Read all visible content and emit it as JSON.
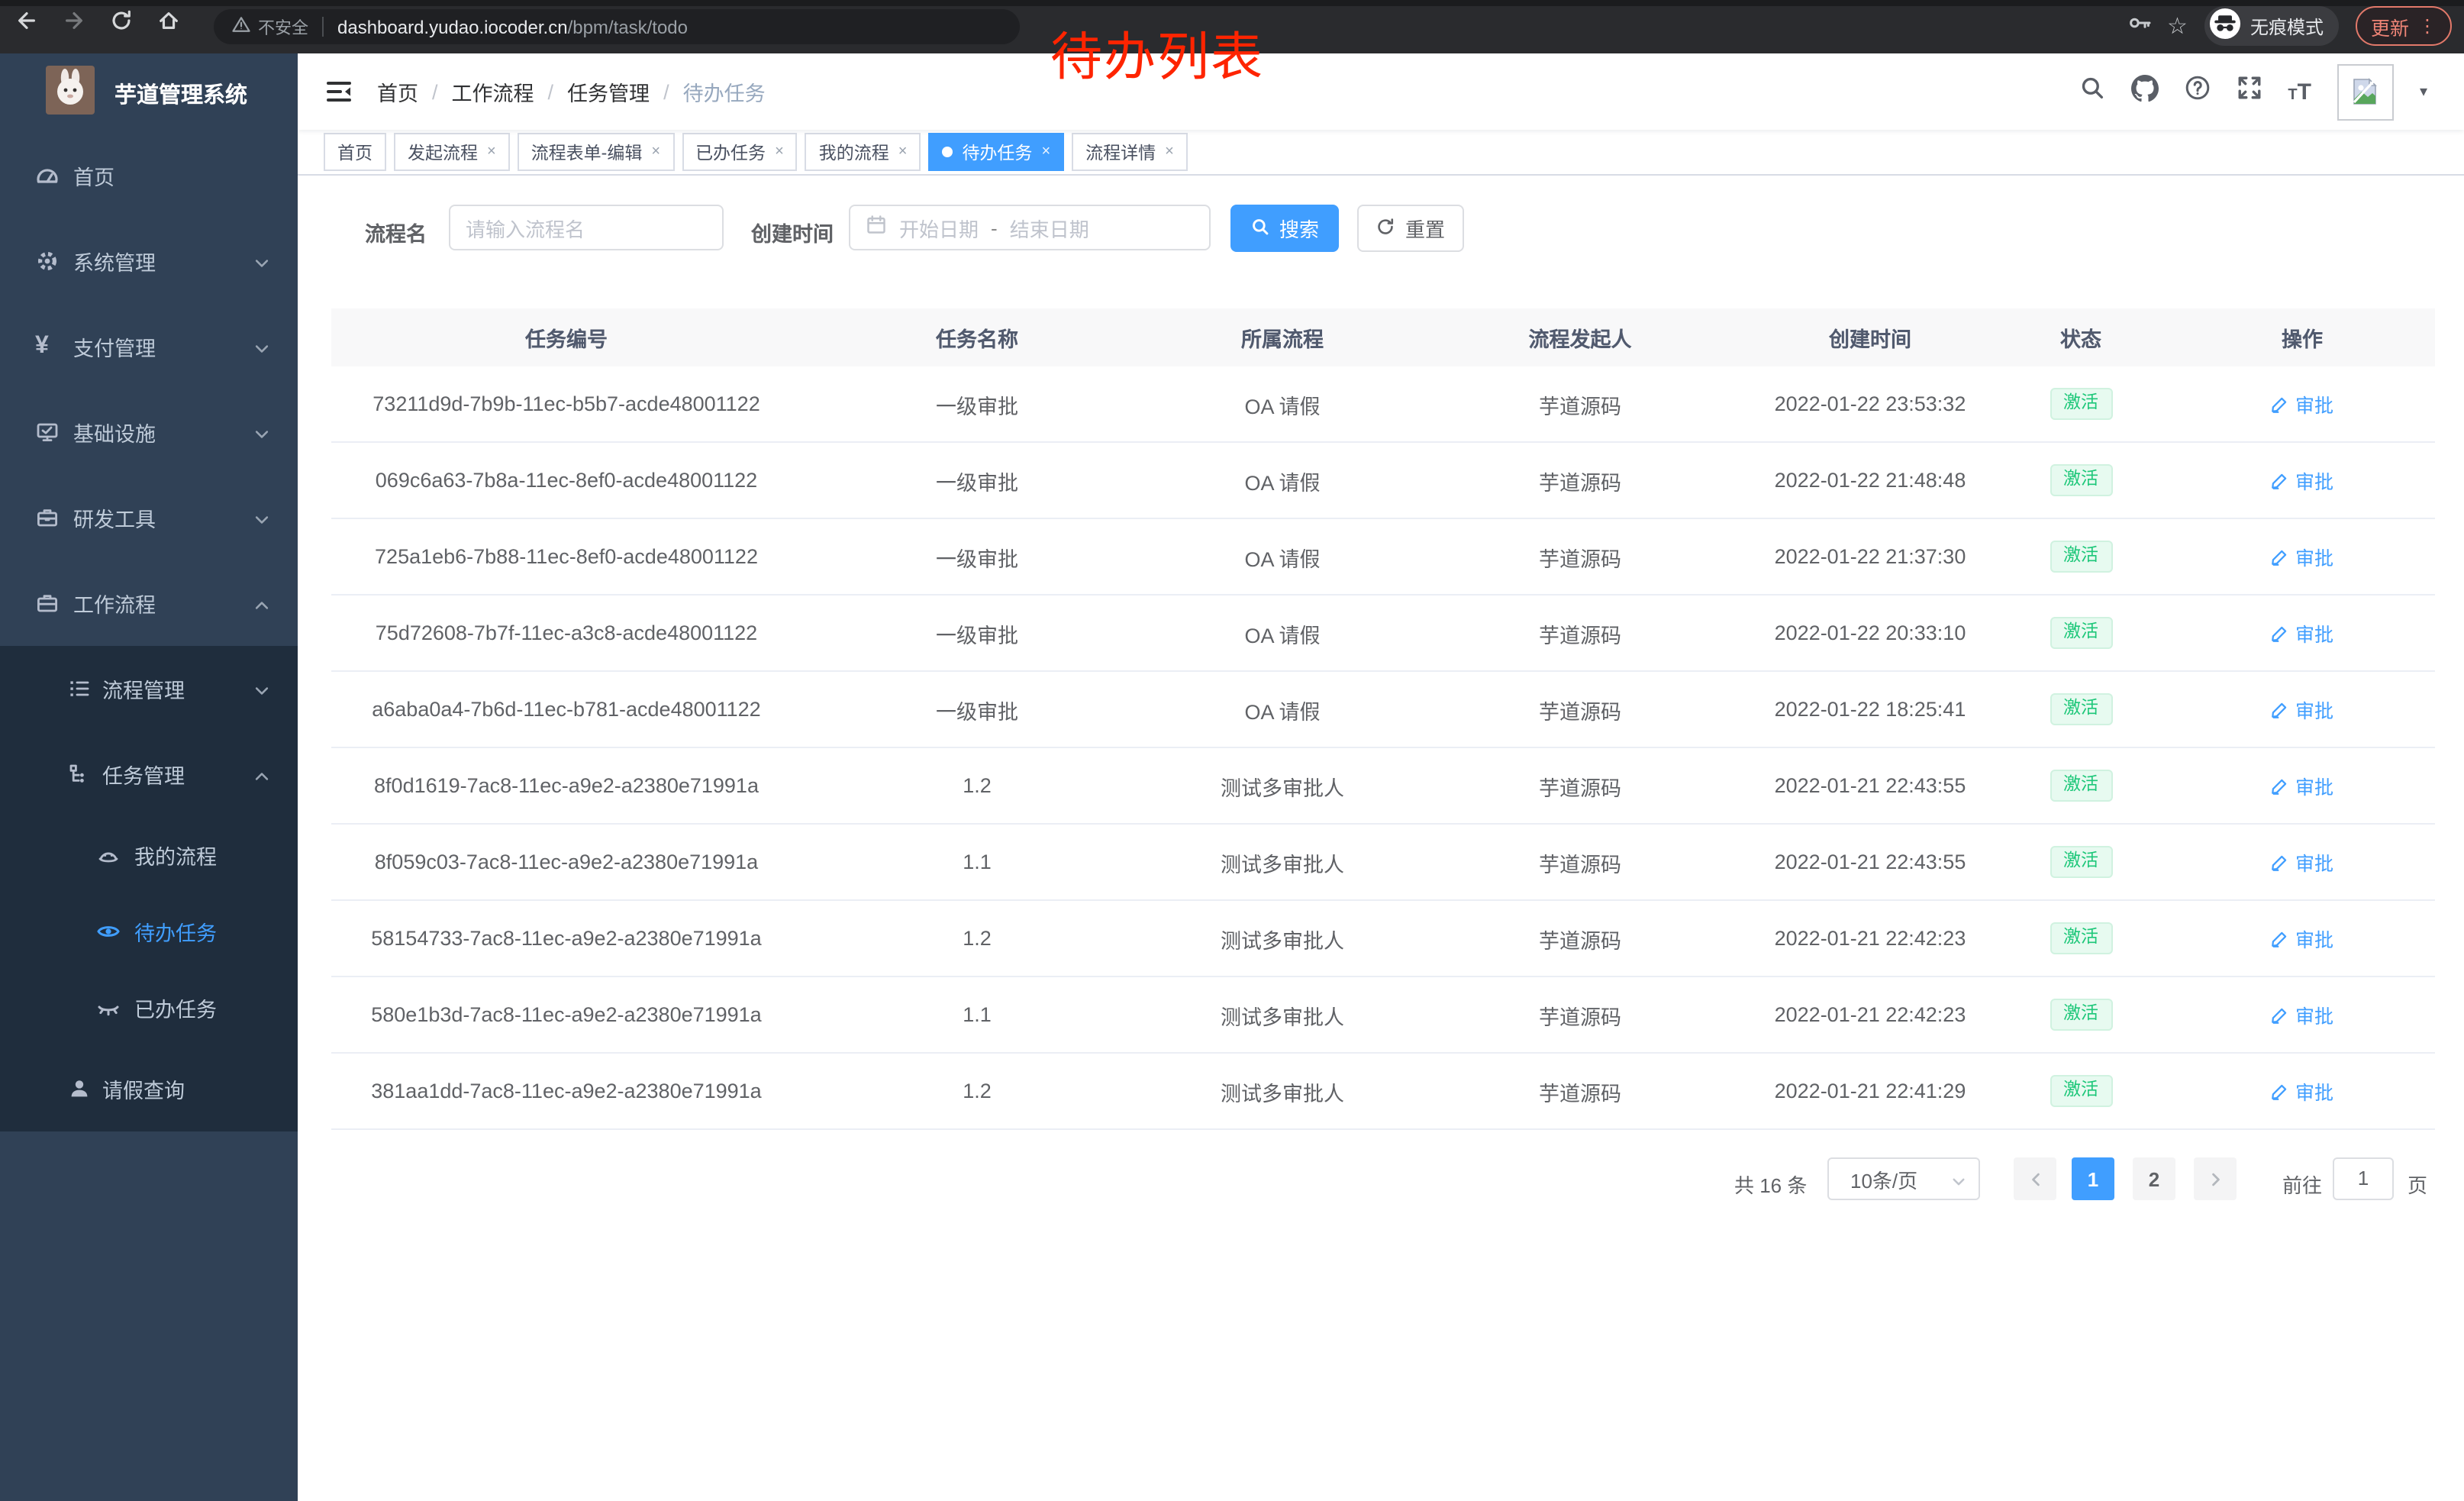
{
  "colors": {
    "accent": "#409eff",
    "sidebar_bg": "#304156",
    "submenu_bg": "#1f2d3d",
    "annotation_red": "#fe2400",
    "status_green": "#1dc779",
    "status_green_bg": "#e7faf0"
  },
  "browser": {
    "security_label": "不安全",
    "url_host": "dashboard.yudao.iocoder.cn",
    "url_path": "/bpm/task/todo",
    "incognito_label": "无痕模式",
    "update_label": "更新",
    "menu_dots": "⋮",
    "star": "☆",
    "caret": "▾"
  },
  "annotation": {
    "text": "待办列表"
  },
  "sidebar": {
    "title": "芋道管理系统",
    "items": [
      {
        "label": "首页",
        "icon": "dashboard-icon"
      },
      {
        "label": "系统管理",
        "icon": "gear-icon"
      },
      {
        "label": "支付管理",
        "icon": "yen-icon"
      },
      {
        "label": "基础设施",
        "icon": "monitor-icon"
      },
      {
        "label": "研发工具",
        "icon": "toolbox-icon"
      },
      {
        "label": "工作流程",
        "icon": "briefcase-icon"
      },
      {
        "label": "流程管理",
        "icon": "list-tree-icon"
      },
      {
        "label": "任务管理",
        "icon": "org-tree-icon"
      },
      {
        "label": "我的流程",
        "icon": "face-icon"
      },
      {
        "label": "待办任务",
        "icon": "eye-icon",
        "active": true
      },
      {
        "label": "已办任务",
        "icon": "eye-closed-icon"
      },
      {
        "label": "请假查询",
        "icon": "user-icon"
      }
    ]
  },
  "breadcrumb": {
    "items": [
      "首页",
      "工作流程",
      "任务管理",
      "待办任务"
    ],
    "separator": "/"
  },
  "tabs": {
    "items": [
      {
        "label": "首页",
        "closable": false,
        "active": false
      },
      {
        "label": "发起流程",
        "closable": true,
        "active": false
      },
      {
        "label": "流程表单-编辑",
        "closable": true,
        "active": false
      },
      {
        "label": "已办任务",
        "closable": true,
        "active": false
      },
      {
        "label": "我的流程",
        "closable": true,
        "active": false
      },
      {
        "label": "待办任务",
        "closable": true,
        "active": true
      },
      {
        "label": "流程详情",
        "closable": true,
        "active": false
      }
    ],
    "close_glyph": "×"
  },
  "filters": {
    "name_label": "流程名",
    "name_placeholder": "请输入流程名",
    "time_label": "创建时间",
    "start_placeholder": "开始日期",
    "range_separator": "-",
    "end_placeholder": "结束日期",
    "search_label": "搜索",
    "reset_label": "重置"
  },
  "table": {
    "columns": [
      "任务编号",
      "任务名称",
      "所属流程",
      "流程发起人",
      "创建时间",
      "状态",
      "操作"
    ],
    "rows": [
      {
        "id": "73211d9d-7b9b-11ec-b5b7-acde48001122",
        "name": "一级审批",
        "process": "OA 请假",
        "starter": "芋道源码",
        "created": "2022-01-22 23:53:32",
        "status": "激活",
        "action": "审批"
      },
      {
        "id": "069c6a63-7b8a-11ec-8ef0-acde48001122",
        "name": "一级审批",
        "process": "OA 请假",
        "starter": "芋道源码",
        "created": "2022-01-22 21:48:48",
        "status": "激活",
        "action": "审批"
      },
      {
        "id": "725a1eb6-7b88-11ec-8ef0-acde48001122",
        "name": "一级审批",
        "process": "OA 请假",
        "starter": "芋道源码",
        "created": "2022-01-22 21:37:30",
        "status": "激活",
        "action": "审批"
      },
      {
        "id": "75d72608-7b7f-11ec-a3c8-acde48001122",
        "name": "一级审批",
        "process": "OA 请假",
        "starter": "芋道源码",
        "created": "2022-01-22 20:33:10",
        "status": "激活",
        "action": "审批"
      },
      {
        "id": "a6aba0a4-7b6d-11ec-b781-acde48001122",
        "name": "一级审批",
        "process": "OA 请假",
        "starter": "芋道源码",
        "created": "2022-01-22 18:25:41",
        "status": "激活",
        "action": "审批"
      },
      {
        "id": "8f0d1619-7ac8-11ec-a9e2-a2380e71991a",
        "name": "1.2",
        "process": "测试多审批人",
        "starter": "芋道源码",
        "created": "2022-01-21 22:43:55",
        "status": "激活",
        "action": "审批"
      },
      {
        "id": "8f059c03-7ac8-11ec-a9e2-a2380e71991a",
        "name": "1.1",
        "process": "测试多审批人",
        "starter": "芋道源码",
        "created": "2022-01-21 22:43:55",
        "status": "激活",
        "action": "审批"
      },
      {
        "id": "58154733-7ac8-11ec-a9e2-a2380e71991a",
        "name": "1.2",
        "process": "测试多审批人",
        "starter": "芋道源码",
        "created": "2022-01-21 22:42:23",
        "status": "激活",
        "action": "审批"
      },
      {
        "id": "580e1b3d-7ac8-11ec-a9e2-a2380e71991a",
        "name": "1.1",
        "process": "测试多审批人",
        "starter": "芋道源码",
        "created": "2022-01-21 22:42:23",
        "status": "激活",
        "action": "审批"
      },
      {
        "id": "381aa1dd-7ac8-11ec-a9e2-a2380e71991a",
        "name": "1.2",
        "process": "测试多审批人",
        "starter": "芋道源码",
        "created": "2022-01-21 22:41:29",
        "status": "激活",
        "action": "审批"
      }
    ]
  },
  "pagination": {
    "total_text": "共 16 条",
    "page_size": "10条/页",
    "pages": [
      "1",
      "2"
    ],
    "active_page": "1",
    "goto_label": "前往",
    "goto_value": "1",
    "goto_unit": "页"
  }
}
